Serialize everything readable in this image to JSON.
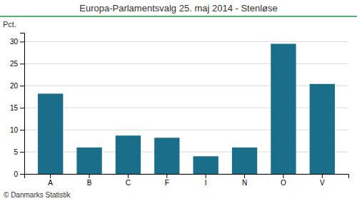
{
  "chart_data": {
    "type": "bar",
    "title": "Europa-Parlamentsvalg 25. maj 2014 - Stenløse",
    "categories": [
      "A",
      "B",
      "C",
      "F",
      "I",
      "N",
      "O",
      "V"
    ],
    "values": [
      18.2,
      6.0,
      8.7,
      8.2,
      4.0,
      6.0,
      29.5,
      20.4
    ],
    "color": "#1a6e8a",
    "ylim": [
      0,
      32
    ],
    "yticks": [
      0,
      5,
      10,
      15,
      20,
      25,
      30
    ],
    "ylabel": "Pct.",
    "annotations": [
      "© Danmarks Statistik"
    ],
    "grid": true
  }
}
